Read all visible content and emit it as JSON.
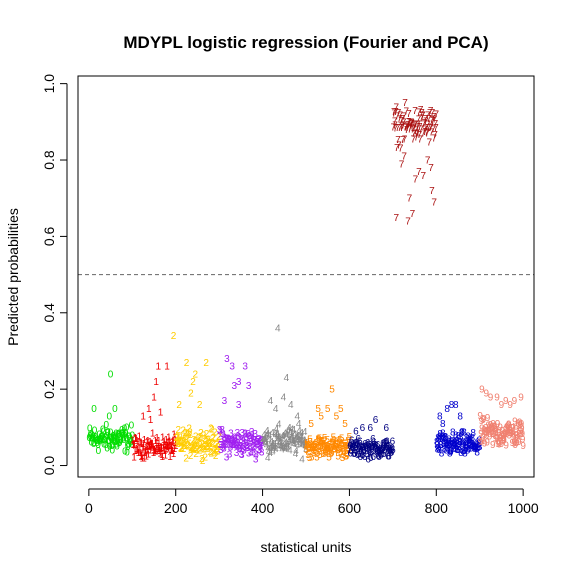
{
  "chart_data": {
    "type": "scatter",
    "title": "MDYPL logistic regression (Fourier and PCA)",
    "xlabel": "statistical units",
    "ylabel": "Predicted probabilities",
    "xlim": [
      -25,
      1025
    ],
    "ylim": [
      -0.03,
      1.02
    ],
    "xticks": [
      0,
      200,
      400,
      600,
      800,
      1000
    ],
    "yticks": [
      0.0,
      0.2,
      0.4,
      0.6,
      0.8,
      1.0
    ],
    "xtick_labels": [
      "0",
      "200",
      "400",
      "600",
      "800",
      "1000"
    ],
    "ytick_labels": [
      "0.0",
      "0.2",
      "0.4",
      "0.6",
      "0.8",
      "1.0"
    ],
    "threshold": 0.5,
    "marker": "digit label per class",
    "groups": [
      {
        "digit": "0",
        "range": [
          1,
          100
        ],
        "color": "#00dd00",
        "base_range": [
          0.02,
          0.12
        ],
        "outliers": [
          [
            50,
            0.24
          ],
          [
            12,
            0.15
          ],
          [
            47,
            0.13
          ],
          [
            60,
            0.15
          ]
        ]
      },
      {
        "digit": "1",
        "range": [
          101,
          200
        ],
        "color": "#ee0000",
        "base_range": [
          0.01,
          0.09
        ],
        "outliers": [
          [
            160,
            0.26
          ],
          [
            180,
            0.26
          ],
          [
            155,
            0.22
          ],
          [
            150,
            0.18
          ],
          [
            138,
            0.15
          ],
          [
            125,
            0.13
          ],
          [
            142,
            0.12
          ],
          [
            165,
            0.14
          ]
        ]
      },
      {
        "digit": "2",
        "range": [
          201,
          300
        ],
        "color": "#ffcc00",
        "base_range": [
          0.01,
          0.11
        ],
        "outliers": [
          [
            195,
            0.34
          ],
          [
            225,
            0.27
          ],
          [
            270,
            0.27
          ],
          [
            245,
            0.24
          ],
          [
            240,
            0.22
          ],
          [
            235,
            0.19
          ],
          [
            208,
            0.16
          ],
          [
            255,
            0.16
          ]
        ]
      },
      {
        "digit": "3",
        "range": [
          301,
          400
        ],
        "color": "#a020f0",
        "base_range": [
          0.01,
          0.11
        ],
        "outliers": [
          [
            318,
            0.28
          ],
          [
            330,
            0.26
          ],
          [
            360,
            0.26
          ],
          [
            345,
            0.22
          ],
          [
            335,
            0.21
          ],
          [
            368,
            0.21
          ],
          [
            312,
            0.17
          ],
          [
            345,
            0.16
          ]
        ]
      },
      {
        "digit": "4",
        "range": [
          401,
          500
        ],
        "color": "#888888",
        "base_range": [
          0.01,
          0.12
        ],
        "outliers": [
          [
            435,
            0.36
          ],
          [
            455,
            0.23
          ],
          [
            418,
            0.17
          ],
          [
            448,
            0.18
          ],
          [
            465,
            0.16
          ],
          [
            430,
            0.15
          ],
          [
            480,
            0.13
          ]
        ]
      },
      {
        "digit": "5",
        "range": [
          501,
          600
        ],
        "color": "#ff8800",
        "base_range": [
          0.01,
          0.09
        ],
        "outliers": [
          [
            560,
            0.2
          ],
          [
            528,
            0.15
          ],
          [
            550,
            0.15
          ],
          [
            580,
            0.15
          ],
          [
            535,
            0.13
          ],
          [
            570,
            0.13
          ],
          [
            512,
            0.11
          ],
          [
            590,
            0.11
          ]
        ]
      },
      {
        "digit": "6",
        "range": [
          601,
          700
        ],
        "color": "#000080",
        "base_range": [
          0.01,
          0.08
        ],
        "outliers": [
          [
            660,
            0.12
          ],
          [
            630,
            0.1
          ],
          [
            648,
            0.1
          ],
          [
            685,
            0.1
          ],
          [
            615,
            0.09
          ]
        ]
      },
      {
        "digit": "7",
        "range": [
          701,
          800
        ],
        "color": "#aa1111",
        "base_range": [
          0.82,
          0.96
        ],
        "outliers": [
          [
            708,
            0.65
          ],
          [
            735,
            0.64
          ],
          [
            745,
            0.66
          ],
          [
            738,
            0.7
          ],
          [
            795,
            0.69
          ],
          [
            790,
            0.72
          ],
          [
            752,
            0.75
          ],
          [
            770,
            0.76
          ],
          [
            760,
            0.77
          ],
          [
            788,
            0.78
          ],
          [
            720,
            0.79
          ],
          [
            780,
            0.8
          ],
          [
            726,
            0.81
          ]
        ]
      },
      {
        "digit": "8",
        "range": [
          801,
          900
        ],
        "color": "#0000cc",
        "base_range": [
          0.01,
          0.1
        ],
        "outliers": [
          [
            808,
            0.13
          ],
          [
            825,
            0.15
          ],
          [
            835,
            0.16
          ],
          [
            845,
            0.16
          ],
          [
            815,
            0.11
          ],
          [
            855,
            0.13
          ]
        ]
      },
      {
        "digit": "9",
        "range": [
          901,
          1000
        ],
        "color": "#f08070",
        "base_range": [
          0.03,
          0.14
        ],
        "outliers": [
          [
            905,
            0.2
          ],
          [
            915,
            0.19
          ],
          [
            925,
            0.18
          ],
          [
            940,
            0.18
          ],
          [
            960,
            0.17
          ],
          [
            980,
            0.17
          ],
          [
            995,
            0.18
          ],
          [
            950,
            0.16
          ],
          [
            970,
            0.16
          ]
        ]
      }
    ]
  }
}
